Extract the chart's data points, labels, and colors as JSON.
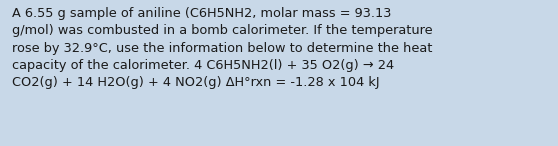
{
  "text": "A 6.55 g sample of aniline (C6H5NH2, molar mass = 93.13\ng/mol) was combusted in a bomb calorimeter. If the temperature\nrose by 32.9°C, use the information below to determine the heat\ncapacity of the calorimeter. 4 C6H5NH2(l) + 35 O2(g) → 24\nCO2(g) + 14 H2O(g) + 4 NO2(g) ΔH°rxn = -1.28 x 104 kJ",
  "background_color": "#c8d8e8",
  "text_color": "#1a1a1a",
  "font_size": 9.3,
  "fig_width": 5.58,
  "fig_height": 1.46,
  "dpi": 100
}
